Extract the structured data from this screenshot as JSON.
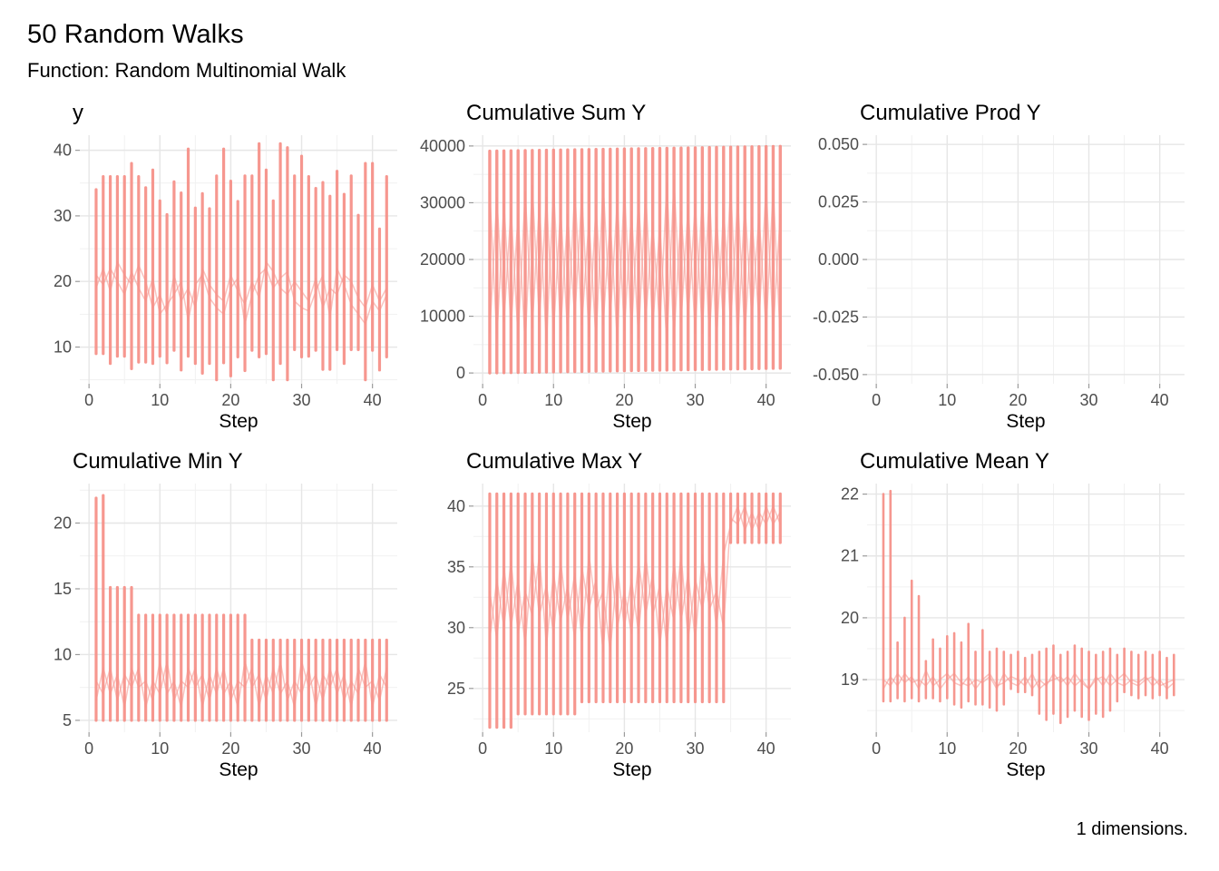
{
  "header": {
    "title": "50 Random Walks",
    "subtitle": "Function: Random Multinomial Walk"
  },
  "caption": "1 dimensions.",
  "colors": {
    "line": "#F6928A",
    "line_soft": "rgba(246,146,138,0.55)",
    "grid_major": "#E6E6E6",
    "grid_minor": "#F1F1F1",
    "tick_mark": "#9B9B9B",
    "tick_text": "#4D4D4D"
  },
  "chart_data": {
    "type": "line",
    "description": "Six small-multiple panels of 50 overlapping random walks (42 steps each); a single salmon path sweeps all 50 walk values at every step, drawn here as per-step vertical extents plus connector polylines.",
    "xlabel_all": "Step",
    "xlim": [
      -1.3,
      43.5
    ],
    "xticks": [
      0,
      10,
      20,
      30,
      40
    ],
    "x": [
      1,
      2,
      3,
      4,
      5,
      6,
      7,
      8,
      9,
      10,
      11,
      12,
      13,
      14,
      15,
      16,
      17,
      18,
      19,
      20,
      21,
      22,
      23,
      24,
      25,
      26,
      27,
      28,
      29,
      30,
      31,
      32,
      33,
      34,
      35,
      36,
      37,
      38,
      39,
      40,
      41,
      42
    ],
    "legend": "none",
    "grid": "major+minor",
    "panels": [
      {
        "title": "y",
        "xlabel": "Step",
        "ylim": [
          4.4,
          42.3
        ],
        "yticks": [
          10,
          20,
          30,
          40
        ],
        "ylabels": [
          "10",
          "20",
          "30",
          "40"
        ],
        "stroke_w": 3.2,
        "stroke_min": [
          9,
          9,
          7.5,
          8.6,
          8.6,
          6.7,
          7.7,
          7.7,
          7.5,
          8.6,
          7.6,
          9.5,
          6.5,
          8.6,
          7.5,
          6,
          7.5,
          5,
          7.6,
          5.6,
          8.5,
          6.4,
          9.5,
          8.5,
          9,
          5,
          7.5,
          5,
          9.6,
          8.5,
          8.6,
          9.5,
          6.6,
          6.6,
          9.6,
          7.5,
          9.6,
          9.6,
          5,
          9.5,
          6.5,
          8.5
        ],
        "stroke_max": [
          34,
          36,
          36,
          36,
          36,
          38,
          36,
          34.3,
          37,
          32.3,
          30.2,
          35.2,
          33.5,
          40.2,
          31.2,
          33.4,
          31.1,
          36.1,
          40.2,
          35.3,
          32.2,
          36.1,
          36.1,
          41,
          37,
          32.3,
          41,
          40.4,
          36.1,
          39.1,
          36,
          34.2,
          35.1,
          33,
          36.8,
          33.3,
          36.1,
          30.1,
          38,
          38,
          28,
          36
        ],
        "mid1": [
          21,
          19.5,
          22,
          20,
          18,
          21.5,
          19,
          17,
          20.5,
          15,
          16.5,
          18,
          20,
          14,
          19.5,
          21,
          17.5,
          16,
          15,
          19,
          20.5,
          13.5,
          18,
          21,
          22,
          19,
          20.5,
          21.5,
          17,
          16,
          15.5,
          18.5,
          21,
          14.5,
          22,
          19.5,
          16.5,
          15,
          13.5,
          17,
          15.5,
          18
        ],
        "mid2": [
          19,
          22,
          18.5,
          23,
          21,
          19.5,
          22.5,
          20,
          16,
          18,
          15,
          21,
          17,
          19,
          16,
          22,
          19.5,
          18,
          17,
          21,
          18.5,
          16.5,
          20,
          17.5,
          23,
          21.5,
          19,
          18,
          20,
          18.5,
          17,
          20.5,
          16,
          19,
          18,
          21,
          20,
          17.5,
          16,
          19.5,
          17,
          19
        ]
      },
      {
        "title": "Cumulative Sum Y",
        "xlabel": "Step",
        "ylim": [
          -1900,
          41900
        ],
        "yticks": [
          0,
          10000,
          20000,
          30000,
          40000
        ],
        "ylabels": [
          "0",
          "10000",
          "20000",
          "30000",
          "40000"
        ],
        "stroke_w": 3.4,
        "stroke_min": [
          20,
          40,
          60,
          80,
          100,
          120,
          140,
          160,
          180,
          200,
          220,
          240,
          260,
          280,
          300,
          320,
          340,
          360,
          380,
          400,
          420,
          440,
          460,
          480,
          500,
          520,
          540,
          560,
          580,
          600,
          620,
          640,
          660,
          680,
          700,
          720,
          740,
          760,
          780,
          800,
          820,
          840
        ],
        "stroke_max": [
          39100,
          39120,
          39140,
          39160,
          39180,
          39200,
          39220,
          39240,
          39260,
          39280,
          39300,
          39320,
          39340,
          39360,
          39380,
          39400,
          39420,
          39440,
          39460,
          39480,
          39500,
          39520,
          39540,
          39560,
          39580,
          39600,
          39620,
          39640,
          39660,
          39680,
          39700,
          39720,
          39740,
          39760,
          39780,
          39800,
          39820,
          39840,
          39860,
          39880,
          39900,
          39920
        ],
        "mid1": [
          32000,
          6000,
          30000,
          8000,
          28000,
          5000,
          33000,
          9000,
          31000,
          7000,
          29000,
          6500,
          32500,
          8500,
          27000,
          5500,
          33500,
          9500,
          30500,
          7500,
          28500,
          6000,
          32000,
          8000,
          26000,
          5000,
          34000,
          9000,
          29500,
          7000,
          31500,
          6500,
          27500,
          8500,
          33000,
          5500,
          30000,
          9500,
          28000,
          7500,
          32500,
          6000
        ],
        "mid2": [
          7000,
          31000,
          9000,
          29000,
          6000,
          32000,
          8000,
          30000,
          5000,
          33000,
          7500,
          28000,
          9500,
          31500,
          6500,
          29500,
          8500,
          27000,
          5500,
          32500,
          7000,
          30500,
          9000,
          26500,
          8000,
          33500,
          6000,
          28500,
          9500,
          30000,
          7000,
          32000,
          5500,
          29000,
          8500,
          31000,
          6500,
          27500,
          9000,
          33000,
          7500,
          28000
        ]
      },
      {
        "title": "Cumulative Prod Y",
        "xlabel": "Step",
        "ylim": [
          -0.054,
          0.054
        ],
        "yticks": [
          -0.05,
          -0.025,
          0,
          0.025,
          0.05
        ],
        "ylabels": [
          "-0.050",
          "-0.025",
          "0.000",
          "0.025",
          "0.050"
        ],
        "stroke_w": 3.2,
        "stroke_min": [],
        "stroke_max": [],
        "mid1": [],
        "mid2": []
      },
      {
        "title": "Cumulative Min Y",
        "xlabel": "Step",
        "ylim": [
          4.1,
          23.0
        ],
        "yticks": [
          5,
          10,
          15,
          20
        ],
        "ylabels": [
          "5",
          "10",
          "15",
          "20"
        ],
        "stroke_w": 3.2,
        "stroke_min": [
          5,
          5,
          5,
          5,
          5,
          5,
          5,
          5,
          5,
          5,
          5,
          5,
          5,
          5,
          5,
          5,
          5,
          5,
          5,
          5,
          5,
          5,
          5,
          5,
          5,
          5,
          5,
          5,
          5,
          5,
          5,
          5,
          5,
          5,
          5,
          5,
          5,
          5,
          5,
          5,
          5,
          5
        ],
        "stroke_max": [
          21.9,
          22.1,
          15.1,
          15.1,
          15.1,
          15.1,
          13,
          13,
          13,
          13,
          13,
          13,
          13,
          13,
          13,
          13,
          13,
          13,
          13,
          13,
          13,
          13,
          11.1,
          11.1,
          11.1,
          11.1,
          11.1,
          11.1,
          11.1,
          11.1,
          11.1,
          11.1,
          11.1,
          11.1,
          11.1,
          11.1,
          11.1,
          11.1,
          11.1,
          11.1,
          11.1,
          11.1
        ],
        "mid1": [
          8,
          7,
          9,
          6.5,
          8.5,
          7.5,
          9,
          6,
          8,
          7,
          9.5,
          6.5,
          8,
          7.5,
          9,
          6,
          8.5,
          7,
          9,
          6.5,
          8,
          7.5,
          9,
          6,
          8.5,
          7,
          9.5,
          6.5,
          8,
          7,
          9,
          6,
          8.5,
          7.5,
          9,
          6.5,
          8,
          7,
          9.5,
          6,
          8.5,
          7.5
        ],
        "mid2": [
          6.5,
          9,
          7,
          8.5,
          6,
          9,
          7.5,
          8,
          6.5,
          9.5,
          7,
          8,
          6,
          9,
          7.5,
          8.5,
          6.5,
          9,
          7,
          8,
          6,
          9.5,
          7.5,
          8.5,
          6.5,
          9,
          7,
          8,
          6,
          9.5,
          7.5,
          8.5,
          6.5,
          9,
          7,
          8.5,
          6,
          9,
          7.5,
          8,
          6.5,
          9
        ]
      },
      {
        "title": "Cumulative Max Y",
        "xlabel": "Step",
        "ylim": [
          21.4,
          41.85
        ],
        "yticks": [
          25,
          30,
          35,
          40
        ],
        "ylabels": [
          "25",
          "30",
          "35",
          "40"
        ],
        "stroke_w": 3.2,
        "stroke_min": [
          21.8,
          21.8,
          21.8,
          21.8,
          22.9,
          22.9,
          22.9,
          22.9,
          22.9,
          22.9,
          22.9,
          22.9,
          22.9,
          23.9,
          23.9,
          23.9,
          23.9,
          23.9,
          23.9,
          23.9,
          23.9,
          23.9,
          23.9,
          23.9,
          23.9,
          23.9,
          23.9,
          23.9,
          23.9,
          23.9,
          23.9,
          23.9,
          23.9,
          23.9,
          37,
          37,
          37,
          37,
          37,
          37,
          37,
          37
        ],
        "stroke_max": [
          41,
          41,
          41,
          41,
          41,
          41,
          41,
          41,
          41,
          41,
          41,
          41,
          41,
          41,
          41,
          41,
          41,
          41,
          41,
          41,
          41,
          41,
          41,
          41,
          41,
          41,
          41,
          41,
          41,
          41,
          41,
          41,
          41,
          41,
          41,
          41,
          41,
          41,
          41,
          41,
          41,
          41
        ],
        "mid1": [
          33,
          29,
          35,
          30,
          34,
          28.5,
          36,
          31,
          33.5,
          29.5,
          35.5,
          30.5,
          34.5,
          29,
          36,
          31.5,
          33,
          28,
          35,
          30,
          34,
          29.5,
          36,
          31,
          33.5,
          28.5,
          35.5,
          30.5,
          34.5,
          29,
          36,
          31.5,
          33,
          30,
          39,
          38.5,
          40,
          38,
          39.5,
          38.5,
          40,
          38.5
        ],
        "mid2": [
          29,
          34,
          30,
          35.5,
          29.5,
          33,
          31,
          36,
          28.5,
          34.5,
          30.5,
          33.5,
          29,
          35,
          31.5,
          34,
          28,
          36,
          30,
          33,
          29.5,
          35.5,
          31,
          34.5,
          28.5,
          33.5,
          30.5,
          36,
          29,
          34,
          31.5,
          35,
          30,
          36,
          38.5,
          40,
          38,
          39.5,
          38,
          40,
          38.5,
          39.5
        ]
      },
      {
        "title": "Cumulative Mean Y",
        "xlabel": "Step",
        "ylim": [
          18.15,
          22.17
        ],
        "yticks": [
          19,
          20,
          21,
          22
        ],
        "ylabels": [
          "19",
          "20",
          "21",
          "22"
        ],
        "stroke_w": 2.6,
        "stroke_min": [
          18.65,
          18.65,
          18.7,
          18.65,
          18.7,
          18.65,
          18.7,
          18.7,
          18.65,
          18.7,
          18.6,
          18.55,
          18.65,
          18.6,
          18.6,
          18.55,
          18.5,
          18.6,
          18.85,
          18.8,
          18.8,
          18.75,
          18.45,
          18.35,
          18.45,
          18.3,
          18.4,
          18.5,
          18.4,
          18.35,
          18.45,
          18.4,
          18.5,
          18.65,
          18.8,
          18.75,
          18.7,
          18.75,
          18.7,
          18.75,
          18.7,
          18.75
        ],
        "stroke_max": [
          22,
          22.05,
          19.6,
          20,
          20.6,
          20.35,
          19.3,
          19.65,
          19.5,
          19.7,
          19.75,
          19.6,
          19.9,
          19.45,
          19.8,
          19.45,
          19.5,
          19.45,
          19.4,
          19.45,
          19.35,
          19.4,
          19.45,
          19.5,
          19.55,
          19.4,
          19.45,
          19.55,
          19.5,
          19.45,
          19.4,
          19.45,
          19.5,
          19.4,
          19.5,
          19.45,
          19.4,
          19.45,
          19.4,
          19.45,
          19.35,
          19.4
        ],
        "mid1": [
          19,
          18.9,
          19.1,
          18.95,
          19.05,
          18.85,
          19.15,
          18.9,
          19,
          19.1,
          18.95,
          18.9,
          19.05,
          18.85,
          19,
          19.1,
          18.9,
          18.95,
          19.05,
          19,
          18.9,
          19.1,
          18.85,
          18.95,
          19,
          19.05,
          18.9,
          19.1,
          18.95,
          18.85,
          19,
          19.05,
          18.9,
          19,
          19.1,
          18.95,
          18.9,
          19,
          19.05,
          18.9,
          18.95,
          19
        ],
        "mid2": [
          18.85,
          19.05,
          18.9,
          19.1,
          18.95,
          19,
          18.9,
          19.05,
          18.85,
          19,
          19.1,
          18.95,
          18.9,
          19,
          18.95,
          19.05,
          18.85,
          19.1,
          18.95,
          18.9,
          19.05,
          18.85,
          19,
          18.9,
          19.1,
          18.95,
          19.05,
          18.9,
          19,
          18.85,
          19.05,
          18.9,
          19.1,
          18.95,
          18.9,
          19,
          18.95,
          19.05,
          18.9,
          19,
          18.85,
          18.95
        ]
      }
    ]
  }
}
